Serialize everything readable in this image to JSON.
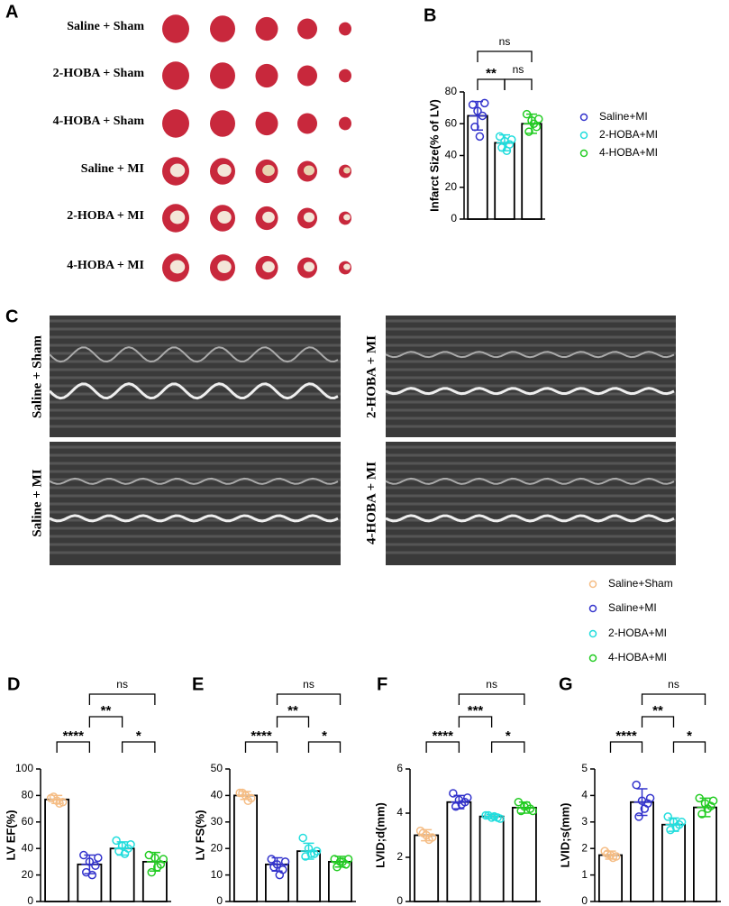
{
  "panel_a": {
    "letter": "A",
    "rows": [
      "Saline + Sham",
      "2-HOBA + Sham",
      "4-HOBA + Sham",
      "Saline + MI",
      "2-HOBA + MI",
      "4-HOBA + MI"
    ]
  },
  "panel_c": {
    "letter": "C",
    "labels": [
      "Saline + Sham",
      "2-HOBA + MI",
      "Saline + MI",
      "4-HOBA + MI"
    ]
  },
  "chart_data": [
    {
      "type": "bar",
      "panel": "B",
      "ylabel": "Infarct Size(% of LV)",
      "categories": [
        "Saline+MI",
        "2-HOBA+MI",
        "4-HOBA+MI"
      ],
      "colors": [
        "#3333cc",
        "#22dddd",
        "#22cc22"
      ],
      "values": [
        65,
        48,
        60
      ],
      "errors": [
        9,
        5,
        6
      ],
      "points": [
        [
          72,
          68,
          65,
          58,
          52,
          73
        ],
        [
          52,
          49,
          47,
          45,
          43,
          50
        ],
        [
          66,
          62,
          58,
          55,
          60,
          63
        ]
      ],
      "ylim": [
        0,
        80
      ],
      "yticks": [
        0,
        20,
        40,
        60,
        80
      ],
      "annotations": [
        "ns",
        "**",
        "ns"
      ]
    },
    {
      "type": "bar",
      "panel": "D",
      "ylabel": "LV EF(%)",
      "categories": [
        "Saline+Sham",
        "Saline+MI",
        "2-HOBA+MI",
        "4-HOBA+MI"
      ],
      "colors": [
        "#f5bd85",
        "#3333cc",
        "#22dddd",
        "#22cc22"
      ],
      "values": [
        77,
        28,
        40,
        30
      ],
      "errors": [
        3,
        7,
        5,
        7
      ],
      "points": [
        [
          78,
          76,
          75,
          79,
          74
        ],
        [
          35,
          30,
          27,
          22,
          20,
          33
        ],
        [
          46,
          42,
          40,
          38,
          36,
          43
        ],
        [
          35,
          33,
          28,
          22,
          26,
          32
        ]
      ],
      "ylim": [
        0,
        100
      ],
      "yticks": [
        0,
        20,
        40,
        60,
        80,
        100
      ],
      "annotations": [
        "ns",
        "**",
        "****",
        "*"
      ]
    },
    {
      "type": "bar",
      "panel": "E",
      "ylabel": "LV FS(%)",
      "categories": [
        "Saline+Sham",
        "Saline+MI",
        "2-HOBA+MI",
        "4-HOBA+MI"
      ],
      "colors": [
        "#f5bd85",
        "#3333cc",
        "#22dddd",
        "#22cc22"
      ],
      "values": [
        40,
        14,
        19,
        15
      ],
      "errors": [
        1.5,
        2.5,
        3,
        2
      ],
      "points": [
        [
          41,
          40,
          39,
          41,
          38
        ],
        [
          16,
          14,
          12,
          13,
          10,
          15
        ],
        [
          24,
          20,
          18,
          17,
          18,
          19
        ],
        [
          16,
          15,
          14,
          13,
          15,
          16
        ]
      ],
      "ylim": [
        0,
        50
      ],
      "yticks": [
        0,
        10,
        20,
        30,
        40,
        50
      ],
      "annotations": [
        "ns",
        "**",
        "****",
        "*"
      ]
    },
    {
      "type": "bar",
      "panel": "F",
      "ylabel": "LVID;d(mm)",
      "categories": [
        "Saline+Sham",
        "Saline+MI",
        "2-HOBA+MI",
        "4-HOBA+MI"
      ],
      "colors": [
        "#f5bd85",
        "#3333cc",
        "#22dddd",
        "#22cc22"
      ],
      "values": [
        3.0,
        4.5,
        3.85,
        4.25
      ],
      "errors": [
        0.25,
        0.3,
        0.1,
        0.25
      ],
      "points": [
        [
          3.2,
          3.0,
          2.9,
          3.1,
          2.8
        ],
        [
          4.9,
          4.6,
          4.5,
          4.3,
          4.4,
          4.7
        ],
        [
          3.9,
          3.8,
          3.8,
          3.9,
          3.85,
          3.75
        ],
        [
          4.5,
          4.3,
          4.2,
          4.1,
          4.35,
          4.1
        ]
      ],
      "ylim": [
        0,
        6
      ],
      "yticks": [
        0,
        2,
        4,
        6
      ],
      "annotations": [
        "ns",
        "***",
        "****",
        "*"
      ]
    },
    {
      "type": "bar",
      "panel": "G",
      "ylabel": "LVID;s(mm)",
      "categories": [
        "Saline+Sham",
        "Saline+MI",
        "2-HOBA+MI",
        "4-HOBA+MI"
      ],
      "colors": [
        "#f5bd85",
        "#3333cc",
        "#22dddd",
        "#22cc22"
      ],
      "values": [
        1.75,
        3.75,
        2.9,
        3.55
      ],
      "errors": [
        0.15,
        0.5,
        0.25,
        0.35
      ],
      "points": [
        [
          1.9,
          1.75,
          1.7,
          1.8,
          1.65
        ],
        [
          4.4,
          3.8,
          3.7,
          3.2,
          3.5,
          3.9
        ],
        [
          3.2,
          3.0,
          2.9,
          2.7,
          2.8,
          3.0
        ],
        [
          3.9,
          3.7,
          3.6,
          3.3,
          3.5,
          3.8
        ]
      ],
      "ylim": [
        0,
        5
      ],
      "yticks": [
        0,
        1,
        2,
        3,
        4,
        5
      ],
      "annotations": [
        "ns",
        "**",
        "****",
        "*"
      ]
    }
  ]
}
